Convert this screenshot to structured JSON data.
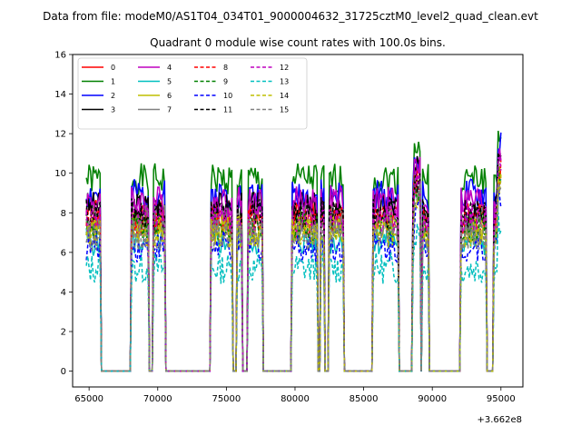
{
  "chart_data": {
    "type": "line",
    "suptitle": "Data from file: modeM0/AS1T04_034T01_9000004632_31725cztM0_level2_quad_clean.evt",
    "title": "Quadrant 0 module wise count rates with 100.0s bins.",
    "xlabel": "",
    "ylabel": "",
    "x_offset_label": "+3.662e8",
    "xlim": [
      63800,
      96600
    ],
    "ylim": [
      -0.8,
      16
    ],
    "xticks": [
      65000,
      70000,
      75000,
      80000,
      85000,
      90000,
      95000
    ],
    "yticks": [
      0,
      2,
      4,
      6,
      8,
      10,
      12,
      14,
      16
    ],
    "grid": false,
    "legend_position": "top-left",
    "legend_columns": 4,
    "on_intervals": [
      [
        64800,
        65800
      ],
      [
        68100,
        69300
      ],
      [
        69700,
        70500
      ],
      [
        73900,
        75400
      ],
      [
        75800,
        76100
      ],
      [
        76600,
        77600
      ],
      [
        79800,
        81600
      ],
      [
        81900,
        82100
      ],
      [
        82500,
        83500
      ],
      [
        85700,
        87500
      ],
      [
        88600,
        89100
      ],
      [
        89300,
        89700
      ],
      [
        92100,
        93900
      ],
      [
        94500,
        95000
      ]
    ],
    "series": [
      {
        "name": "0",
        "color": "#ff0000",
        "dash": "solid",
        "level": 7.9
      },
      {
        "name": "1",
        "color": "#008000",
        "dash": "solid",
        "level": 9.7
      },
      {
        "name": "2",
        "color": "#0000ff",
        "dash": "solid",
        "level": 8.9
      },
      {
        "name": "3",
        "color": "#000000",
        "dash": "solid",
        "level": 8.3
      },
      {
        "name": "4",
        "color": "#bf00bf",
        "dash": "solid",
        "level": 8.6
      },
      {
        "name": "5",
        "color": "#00bfbf",
        "dash": "solid",
        "level": 6.6
      },
      {
        "name": "6",
        "color": "#bfbf00",
        "dash": "solid",
        "level": 7.2
      },
      {
        "name": "7",
        "color": "#808080",
        "dash": "solid",
        "level": 7.6
      },
      {
        "name": "8",
        "color": "#ff0000",
        "dash": "dashed",
        "level": 7.5
      },
      {
        "name": "9",
        "color": "#008000",
        "dash": "dashed",
        "level": 7.3
      },
      {
        "name": "10",
        "color": "#0000ff",
        "dash": "dashed",
        "level": 6.3
      },
      {
        "name": "11",
        "color": "#000000",
        "dash": "dashed",
        "level": 8.0
      },
      {
        "name": "12",
        "color": "#bf00bf",
        "dash": "dashed",
        "level": 7.7
      },
      {
        "name": "13",
        "color": "#00bfbf",
        "dash": "dashed",
        "level": 5.2
      },
      {
        "name": "14",
        "color": "#bfbf00",
        "dash": "dashed",
        "level": 7.0
      },
      {
        "name": "15",
        "color": "#808080",
        "dash": "dashed",
        "level": 6.9
      }
    ]
  }
}
